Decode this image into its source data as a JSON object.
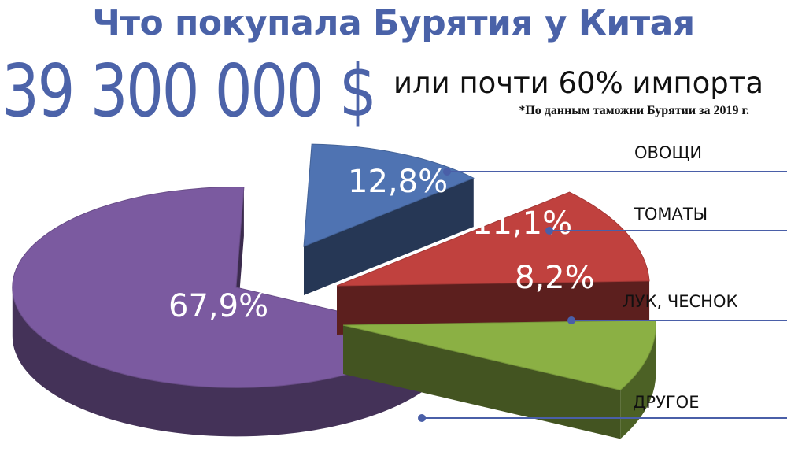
{
  "header": {
    "title": "Что покупала Бурятия у Китая",
    "total": "39 300 000 $",
    "share": "или почти 60% импорта",
    "source": "*По данным таможни Бурятии за 2019 г."
  },
  "chart_data": {
    "type": "pie",
    "title": "Что покупала Бурятия у Китая",
    "slices": [
      {
        "name": "ОВОЩИ",
        "value": 12.8,
        "label": "12,8%",
        "color": "#4f73b2"
      },
      {
        "name": "ТОМАТЫ",
        "value": 11.1,
        "label": "11,1%",
        "color": "#c0413e"
      },
      {
        "name": "ЛУК, ЧЕСНОК",
        "value": 8.2,
        "label": "8,2%",
        "color": "#8bb044"
      },
      {
        "name": "ДРУГОЕ",
        "value": 67.9,
        "label": "67,9%",
        "color": "#7b5aa0"
      }
    ],
    "legend_placement": "right",
    "callout_color": "#4a5fa8"
  }
}
